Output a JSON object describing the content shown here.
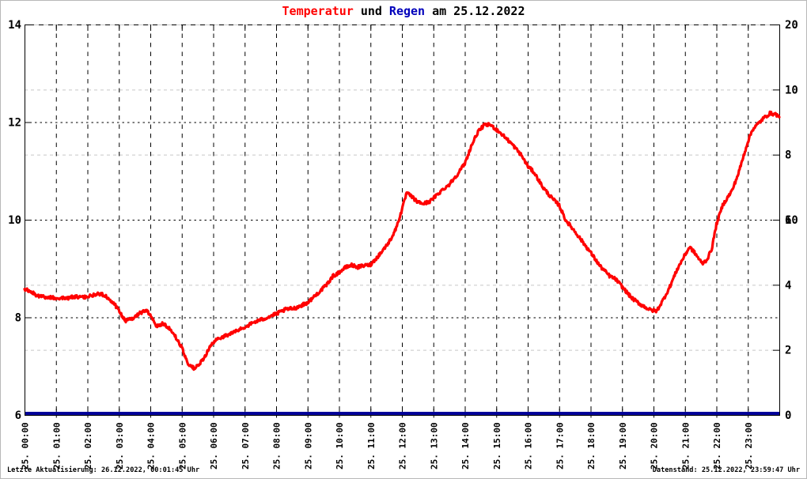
{
  "page": {
    "title": {
      "part1": "Temperatur",
      "part2": "und",
      "part3": "Regen",
      "part4": "am 25.12.2022"
    },
    "footer": {
      "left": "Letzte Aktualisierung: 26.12.2022, 00:01:45 Uhr",
      "right": "Datenstand: 25.12.2022, 23:59:47 Uhr"
    }
  },
  "colors": {
    "title_red": "#ff0000",
    "title_blue": "#0000bb",
    "temperature_line": "#ff0000",
    "rain_line": "#000099",
    "green_axis_labels": "#00dd00",
    "grid_black": "#000000",
    "grid_gray": "#c8c8c8",
    "axis_black": "#000000"
  },
  "chart_data": {
    "type": "line",
    "title": "Temperatur und Regen am 25.12.2022",
    "grid": "on",
    "x_axis": {
      "range_hours": [
        0,
        24
      ],
      "tick_interval_minutes": 60,
      "tick_labels": [
        "25. 00:00",
        "25. 01:00",
        "25. 02:00",
        "25. 03:00",
        "25. 04:00",
        "25. 05:00",
        "25. 06:00",
        "25. 07:00",
        "25. 08:00",
        "25. 09:00",
        "25. 10:00",
        "25. 11:00",
        "25. 12:00",
        "25. 13:00",
        "25. 14:00",
        "25. 15:00",
        "25. 16:00",
        "25. 17:00",
        "25. 18:00",
        "25. 19:00",
        "25. 20:00",
        "25. 21:00",
        "25. 22:00",
        "25. 23:00"
      ]
    },
    "y_axis_left": {
      "range": [
        6,
        14
      ],
      "tick_values": [
        14,
        12,
        10,
        8,
        6
      ],
      "label_color": "#000000"
    },
    "y_axis_right": {
      "range": [
        0,
        20
      ],
      "tick_values": [
        20,
        10,
        0
      ],
      "label_color": "#000000"
    },
    "y_axis_right_green": {
      "range": [
        0,
        12
      ],
      "tick_values": [
        10,
        8,
        6,
        4,
        2
      ],
      "label_color": "#00dd00"
    },
    "gridlines": {
      "vertical_black_every_hour": true,
      "horizontal_black_at_left_values": [
        12,
        10,
        8
      ],
      "horizontal_gray_at_green_values": [
        10,
        8,
        4,
        2
      ],
      "top_border_mixed_dash": true
    },
    "series": [
      {
        "name": "Temperatur",
        "color": "#ff0000",
        "axis": "left",
        "points": [
          [
            0.0,
            8.58
          ],
          [
            0.2,
            8.52
          ],
          [
            0.4,
            8.45
          ],
          [
            0.7,
            8.41
          ],
          [
            1.0,
            8.4
          ],
          [
            1.3,
            8.39
          ],
          [
            1.6,
            8.42
          ],
          [
            1.9,
            8.41
          ],
          [
            2.1,
            8.44
          ],
          [
            2.35,
            8.49
          ],
          [
            2.55,
            8.45
          ],
          [
            2.8,
            8.32
          ],
          [
            3.0,
            8.14
          ],
          [
            3.2,
            7.93
          ],
          [
            3.4,
            7.96
          ],
          [
            3.65,
            8.08
          ],
          [
            3.85,
            8.15
          ],
          [
            4.0,
            8.06
          ],
          [
            4.2,
            7.82
          ],
          [
            4.4,
            7.88
          ],
          [
            4.6,
            7.78
          ],
          [
            4.8,
            7.6
          ],
          [
            5.0,
            7.38
          ],
          [
            5.2,
            7.05
          ],
          [
            5.4,
            6.95
          ],
          [
            5.55,
            7.03
          ],
          [
            5.7,
            7.15
          ],
          [
            5.85,
            7.35
          ],
          [
            6.0,
            7.48
          ],
          [
            6.2,
            7.58
          ],
          [
            6.5,
            7.65
          ],
          [
            6.8,
            7.74
          ],
          [
            7.0,
            7.8
          ],
          [
            7.3,
            7.9
          ],
          [
            7.6,
            7.97
          ],
          [
            8.0,
            8.07
          ],
          [
            8.3,
            8.16
          ],
          [
            8.6,
            8.19
          ],
          [
            9.0,
            8.3
          ],
          [
            9.3,
            8.48
          ],
          [
            9.6,
            8.66
          ],
          [
            9.8,
            8.84
          ],
          [
            10.0,
            8.92
          ],
          [
            10.2,
            9.02
          ],
          [
            10.4,
            9.07
          ],
          [
            10.6,
            9.03
          ],
          [
            10.8,
            9.06
          ],
          [
            11.0,
            9.08
          ],
          [
            11.2,
            9.22
          ],
          [
            11.4,
            9.38
          ],
          [
            11.6,
            9.55
          ],
          [
            11.8,
            9.8
          ],
          [
            12.0,
            10.2
          ],
          [
            12.15,
            10.55
          ],
          [
            12.3,
            10.48
          ],
          [
            12.5,
            10.36
          ],
          [
            12.7,
            10.33
          ],
          [
            12.9,
            10.38
          ],
          [
            13.1,
            10.5
          ],
          [
            13.3,
            10.62
          ],
          [
            13.5,
            10.72
          ],
          [
            13.75,
            10.92
          ],
          [
            14.0,
            11.15
          ],
          [
            14.2,
            11.5
          ],
          [
            14.4,
            11.78
          ],
          [
            14.6,
            11.93
          ],
          [
            14.8,
            11.95
          ],
          [
            15.0,
            11.85
          ],
          [
            15.2,
            11.74
          ],
          [
            15.5,
            11.55
          ],
          [
            15.8,
            11.32
          ],
          [
            16.0,
            11.1
          ],
          [
            16.2,
            10.97
          ],
          [
            16.5,
            10.65
          ],
          [
            16.8,
            10.42
          ],
          [
            17.0,
            10.3
          ],
          [
            17.2,
            10.0
          ],
          [
            17.5,
            9.76
          ],
          [
            17.8,
            9.5
          ],
          [
            18.0,
            9.33
          ],
          [
            18.3,
            9.05
          ],
          [
            18.6,
            8.85
          ],
          [
            18.8,
            8.78
          ],
          [
            19.0,
            8.63
          ],
          [
            19.3,
            8.4
          ],
          [
            19.6,
            8.26
          ],
          [
            19.9,
            8.15
          ],
          [
            20.1,
            8.13
          ],
          [
            20.3,
            8.35
          ],
          [
            20.5,
            8.6
          ],
          [
            20.75,
            8.98
          ],
          [
            21.0,
            9.28
          ],
          [
            21.15,
            9.44
          ],
          [
            21.3,
            9.33
          ],
          [
            21.55,
            9.1
          ],
          [
            21.7,
            9.18
          ],
          [
            21.85,
            9.4
          ],
          [
            22.0,
            9.9
          ],
          [
            22.2,
            10.3
          ],
          [
            22.5,
            10.6
          ],
          [
            22.7,
            10.95
          ],
          [
            23.0,
            11.6
          ],
          [
            23.15,
            11.85
          ],
          [
            23.3,
            11.95
          ],
          [
            23.5,
            12.08
          ],
          [
            23.7,
            12.18
          ],
          [
            23.9,
            12.16
          ],
          [
            24.0,
            12.1
          ]
        ]
      },
      {
        "name": "Regen",
        "color": "#000099",
        "axis": "right",
        "constant_value": 0
      }
    ]
  }
}
